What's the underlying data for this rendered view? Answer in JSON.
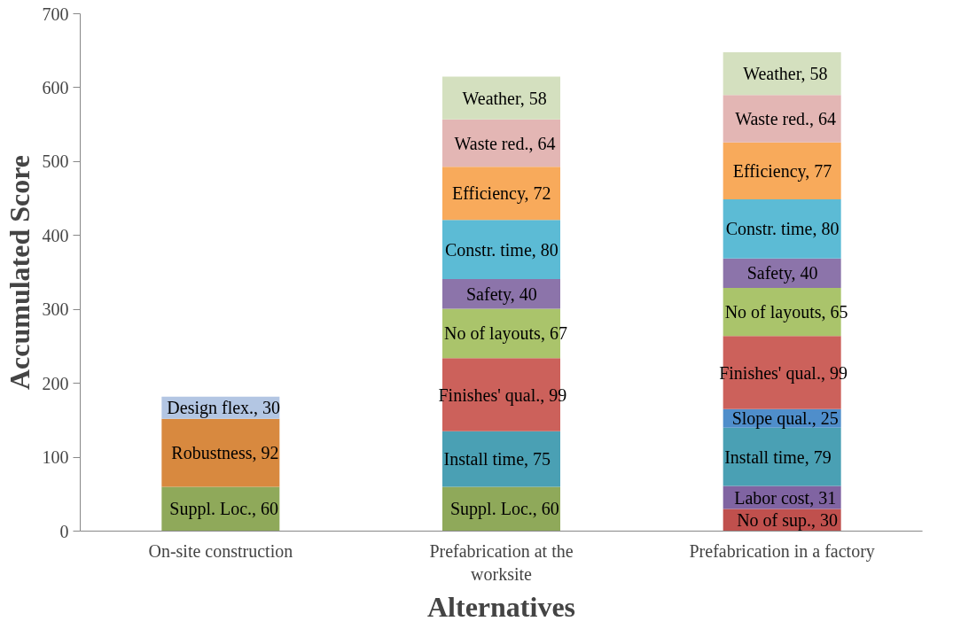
{
  "chart_data": {
    "type": "bar",
    "stacked": true,
    "xlabel": "Alternatives",
    "ylabel": "Accumulated Score",
    "categories": [
      "On-site construction",
      "Prefabrication at the worksite",
      "Prefabrication in a factory"
    ],
    "ylim": [
      0,
      700
    ],
    "yticks": [
      0,
      100,
      200,
      300,
      400,
      500,
      600,
      700
    ],
    "grid": false,
    "series": [
      {
        "color": "#c0504d",
        "values": [
          null,
          null,
          30
        ],
        "value_labels": [
          null,
          null,
          "No of sup., 30"
        ]
      },
      {
        "color": "#8064a2",
        "values": [
          null,
          null,
          31
        ],
        "value_labels": [
          null,
          null,
          "Labor cost, 31"
        ]
      },
      {
        "color": "#8fa95a",
        "values": [
          60,
          60,
          null
        ],
        "value_labels": [
          "Suppl. Loc., 60",
          "Suppl. Loc., 60",
          null
        ]
      },
      {
        "color": "#d8893f",
        "values": [
          92,
          null,
          null
        ],
        "value_labels": [
          "Robustness, 92",
          null,
          null
        ]
      },
      {
        "color": "#b3c6e3",
        "values": [
          30,
          null,
          null
        ],
        "value_labels": [
          "Design flex., 30",
          null,
          null
        ]
      },
      {
        "color": "#4aa0b4",
        "values": [
          null,
          75,
          79
        ],
        "value_labels": [
          null,
          "Install time, 75",
          "Install time, 79"
        ]
      },
      {
        "color": "#4f8ecb",
        "values": [
          null,
          null,
          25
        ],
        "value_labels": [
          null,
          null,
          "Slope qual., 25"
        ]
      },
      {
        "color": "#cc615b",
        "values": [
          null,
          99,
          99
        ],
        "value_labels": [
          null,
          "Finishes' qual., 99",
          "Finishes' qual., 99"
        ]
      },
      {
        "color": "#aac46b",
        "values": [
          null,
          67,
          65
        ],
        "value_labels": [
          null,
          "No of layouts, 67",
          "No of layouts, 65"
        ]
      },
      {
        "color": "#8c74aa",
        "values": [
          null,
          40,
          40
        ],
        "value_labels": [
          null,
          "Safety, 40",
          "Safety, 40"
        ]
      },
      {
        "color": "#5cbbd5",
        "values": [
          null,
          80,
          80
        ],
        "value_labels": [
          null,
          "Constr. time, 80",
          "Constr. time, 80"
        ]
      },
      {
        "color": "#f8aa5b",
        "values": [
          null,
          72,
          77
        ],
        "value_labels": [
          null,
          "Efficiency, 72",
          "Efficiency, 77"
        ]
      },
      {
        "color": "#e3b6b4",
        "values": [
          null,
          64,
          64
        ],
        "value_labels": [
          null,
          "Waste red., 64",
          "Waste red., 64"
        ]
      },
      {
        "color": "#d4e0bf",
        "values": [
          null,
          58,
          58
        ],
        "value_labels": [
          null,
          "Weather, 58",
          "Weather, 58"
        ]
      }
    ]
  }
}
